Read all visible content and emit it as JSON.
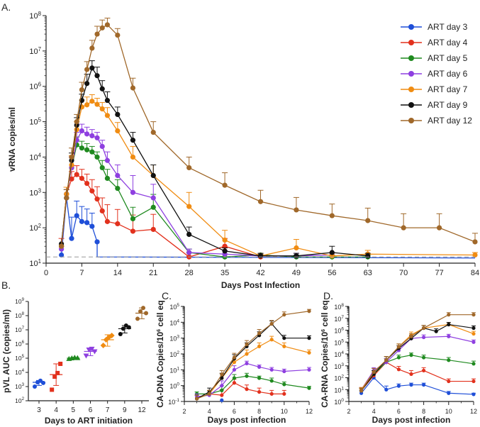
{
  "legend": [
    "ART day 3",
    "ART day 4",
    "ART day 5",
    "ART day 6",
    "ART day 7",
    "ART day 9",
    "ART day 12"
  ],
  "colors": {
    "ART day 3": "#1f4fd8",
    "ART day 4": "#e2311d",
    "ART day 5": "#1f8a1f",
    "ART day 6": "#8e3fe0",
    "ART day 7": "#f08c12",
    "ART day 9": "#111111",
    "ART day 12": "#a0682a"
  },
  "chart_data": [
    {
      "panel": "A.",
      "type": "line",
      "title": "",
      "xlabel": "Days Post Infection",
      "ylabel": "vRNA copies/ml",
      "xlim": [
        0,
        84
      ],
      "ylog": [
        1,
        8
      ],
      "xticks": [
        "0",
        "7",
        "14",
        "21",
        "28",
        "35",
        "42",
        "49",
        "56",
        "63",
        "70",
        "77",
        "84"
      ],
      "yticks": [
        "10",
        "10",
        "10",
        "10",
        "10",
        "10",
        "10",
        "10"
      ],
      "yexp": [
        "1",
        "2",
        "3",
        "4",
        "5",
        "6",
        "7",
        "8"
      ],
      "limit_of_detection": 15,
      "series": [
        {
          "name": "ART day 3",
          "x": [
            3,
            4,
            5,
            6,
            7,
            8,
            9,
            10,
            84
          ],
          "y": [
            17,
            700,
            50,
            220,
            150,
            140,
            110,
            40,
            14
          ],
          "err": [
            0,
            0,
            150,
            350,
            250,
            200,
            150,
            0,
            0
          ],
          "endOnly": true
        },
        {
          "name": "ART day 4",
          "x": [
            3,
            4,
            5,
            6,
            7,
            8,
            9,
            10,
            11,
            12,
            14,
            17,
            21,
            28,
            35,
            42
          ],
          "y": [
            30,
            900,
            2400,
            3200,
            2500,
            1800,
            1100,
            650,
            300,
            150,
            130,
            80,
            90,
            15,
            30,
            15
          ],
          "err": [
            20,
            500,
            1500,
            2500,
            2000,
            1500,
            1200,
            800,
            400,
            300,
            200,
            150,
            150,
            5,
            20,
            3
          ]
        },
        {
          "name": "ART day 5",
          "x": [
            3,
            4,
            5,
            6,
            7,
            8,
            9,
            10,
            11,
            12,
            14,
            17,
            21,
            28,
            35,
            42,
            49,
            56,
            63
          ],
          "y": [
            30,
            900,
            5000,
            22000,
            18000,
            16000,
            14000,
            10000,
            5000,
            2500,
            1300,
            180,
            380,
            20,
            15,
            17,
            15,
            15,
            15
          ],
          "err": [
            0,
            500,
            5000,
            15000,
            10000,
            8000,
            6000,
            4000,
            3000,
            2000,
            1000,
            200,
            500,
            5,
            3,
            2,
            2,
            2,
            2
          ]
        },
        {
          "name": "ART day 6",
          "x": [
            3,
            4,
            5,
            6,
            7,
            8,
            9,
            10,
            11,
            12,
            14,
            17,
            21,
            28,
            35,
            42,
            49,
            56
          ],
          "y": [
            25,
            900,
            5000,
            30000,
            55000,
            45000,
            40000,
            35000,
            20000,
            8000,
            3000,
            1000,
            700,
            20,
            18,
            16,
            16,
            17
          ],
          "err": [
            0,
            500,
            5000,
            20000,
            30000,
            25000,
            20000,
            15000,
            10000,
            6000,
            3000,
            2000,
            1000,
            5,
            5,
            3,
            3,
            3
          ]
        },
        {
          "name": "ART day 7",
          "x": [
            3,
            4,
            5,
            6,
            7,
            8,
            9,
            10,
            11,
            12,
            14,
            17,
            21,
            28,
            35,
            42,
            49,
            56,
            63,
            84
          ],
          "y": [
            30,
            900,
            6000,
            60000,
            260000,
            300000,
            380000,
            310000,
            230000,
            150000,
            55000,
            10000,
            3000,
            400,
            45,
            16,
            27,
            16,
            18,
            17
          ],
          "err": [
            0,
            500,
            5000,
            40000,
            150000,
            200000,
            200000,
            150000,
            120000,
            100000,
            40000,
            10000,
            3000,
            600,
            40,
            3,
            20,
            3,
            5,
            3
          ]
        },
        {
          "name": "ART day 9",
          "x": [
            3,
            4,
            5,
            6,
            7,
            8,
            9,
            10,
            11,
            12,
            14,
            17,
            21,
            28,
            35,
            42,
            49,
            56,
            63
          ],
          "y": [
            35,
            700,
            8000,
            80000,
            400000,
            1200000,
            3300000,
            2000000,
            850000,
            400000,
            160000,
            30000,
            3000,
            65,
            22,
            16,
            16,
            20,
            16
          ],
          "err": [
            0,
            500,
            5000,
            50000,
            200000,
            1000000,
            2000000,
            1500000,
            600000,
            300000,
            100000,
            20000,
            3000,
            40,
            5,
            3,
            3,
            10,
            3
          ]
        },
        {
          "name": "ART day 12",
          "x": [
            3,
            4,
            5,
            6,
            7,
            8,
            9,
            10,
            11,
            12,
            14,
            17,
            21,
            28,
            35,
            42,
            49,
            56,
            63,
            70,
            77,
            84
          ],
          "y": [
            30,
            700,
            10000,
            100000,
            800000,
            3000000,
            12000000,
            30000000,
            45000000,
            55000000,
            28000000,
            900000,
            50000,
            5000,
            1600,
            550,
            320,
            220,
            160,
            100,
            100,
            40
          ],
          "err": [
            0,
            500,
            8000,
            60000,
            500000,
            2000000,
            8000000,
            20000000,
            30000000,
            30000000,
            15000000,
            800000,
            50000,
            5000,
            2000,
            600,
            400,
            250,
            200,
            150,
            150,
            30
          ]
        }
      ]
    },
    {
      "panel": "B.",
      "type": "scatter",
      "xlabel": "Days to ART initiation",
      "ylabel": "pVL AUC (copies/ml)",
      "categories": [
        "3",
        "4",
        "5",
        "6",
        "7",
        "9",
        "12"
      ],
      "ylog": [
        2,
        9
      ],
      "yticks": [
        "10",
        "10",
        "10",
        "10",
        "10",
        "10",
        "10",
        "10"
      ],
      "yexp": [
        "2",
        "3",
        "4",
        "5",
        "6",
        "7",
        "8",
        "9"
      ],
      "groups": [
        {
          "name": "ART day 3",
          "marker": "circle",
          "points": [
            1000,
            2000,
            2600,
            1800
          ],
          "mean": 2000,
          "sd_low": 1200,
          "sd_high": 2700
        },
        {
          "name": "ART day 4",
          "marker": "square",
          "points": [
            600,
            5000,
            9000,
            40000
          ],
          "mean": 7000,
          "sd_low": 1200,
          "sd_high": 40000
        },
        {
          "name": "ART day 5",
          "marker": "triangle",
          "points": [
            90000,
            100000,
            110000,
            105000
          ],
          "mean": 100000,
          "sd_low": 90000,
          "sd_high": 115000
        },
        {
          "name": "ART day 6",
          "marker": "triangle-down",
          "points": [
            150000,
            400000,
            450000,
            300000
          ],
          "mean": 300000,
          "sd_low": 150000,
          "sd_high": 500000
        },
        {
          "name": "ART day 7",
          "marker": "diamond",
          "points": [
            800000,
            2000000,
            3000000,
            4000000
          ],
          "mean": 2000000,
          "sd_low": 700000,
          "sd_high": 4500000
        },
        {
          "name": "ART day 9",
          "marker": "circle",
          "points": [
            5000000,
            12000000,
            20000000,
            15000000
          ],
          "mean": 12000000,
          "sd_low": 6000000,
          "sd_high": 20000000
        },
        {
          "name": "ART day 12",
          "marker": "circle",
          "points": [
            60000000,
            200000000,
            350000000,
            150000000
          ],
          "mean": 150000000,
          "sd_low": 60000000,
          "sd_high": 350000000
        }
      ]
    },
    {
      "panel": "C.",
      "type": "line",
      "xlabel": "Days post infection",
      "ylabel": "CA-DNA Copies/10^6 cell eq",
      "ylabel_parts": [
        "CA-DNA Copies/10",
        "6",
        " cell eq"
      ],
      "xlim": [
        2,
        12
      ],
      "xticks": [
        "2",
        "4",
        "6",
        "8",
        "10",
        "12"
      ],
      "ylog": [
        -1,
        5
      ],
      "yticks": [
        "10",
        "10",
        "10",
        "10",
        "10",
        "10",
        "10"
      ],
      "yexp": [
        "-1",
        "0",
        "1",
        "2",
        "3",
        "4",
        "5"
      ],
      "series": [
        {
          "name": "ART day 3",
          "x": [
            5
          ],
          "y": [
            0.12
          ],
          "err": [
            0
          ]
        },
        {
          "name": "ART day 4",
          "x": [
            3,
            4,
            5,
            6,
            7,
            8,
            9,
            10
          ],
          "y": [
            0.15,
            0.3,
            0.25,
            1.5,
            0.6,
            0.4,
            0.3,
            0.3
          ],
          "err": [
            0.1,
            0.2,
            0.3,
            1,
            0.5,
            0.3,
            0.2,
            0.2
          ]
        },
        {
          "name": "ART day 5",
          "x": [
            3,
            4,
            5,
            6,
            7,
            8,
            9,
            10,
            12
          ],
          "y": [
            0.3,
            0.3,
            0.5,
            3,
            4,
            3,
            2,
            1.2,
            0.7
          ],
          "err": [
            0.1,
            0.2,
            0.5,
            2,
            2,
            1,
            1,
            0.5,
            0.2
          ]
        },
        {
          "name": "ART day 6",
          "x": [
            3,
            4,
            5,
            6,
            7,
            8,
            9,
            10,
            12
          ],
          "y": [
            0.2,
            0.25,
            1,
            10,
            25,
            15,
            10,
            8,
            10
          ],
          "err": [
            0.1,
            0.1,
            1,
            8,
            10,
            5,
            4,
            3,
            4
          ]
        },
        {
          "name": "ART day 7",
          "x": [
            3,
            4,
            5,
            6,
            7,
            8,
            9,
            10,
            12
          ],
          "y": [
            0.15,
            0.3,
            3,
            30,
            100,
            300,
            800,
            300,
            120
          ],
          "err": [
            0.1,
            0.2,
            3,
            20,
            80,
            200,
            500,
            200,
            60
          ]
        },
        {
          "name": "ART day 9",
          "x": [
            3,
            4,
            5,
            6,
            7,
            8,
            9,
            10,
            12
          ],
          "y": [
            0.15,
            0.4,
            3,
            50,
            300,
            1500,
            8000,
            1000,
            1000
          ],
          "err": [
            0.1,
            0.3,
            3,
            40,
            200,
            1000,
            4000,
            500,
            400
          ]
        },
        {
          "name": "ART day 12",
          "x": [
            3,
            4,
            5,
            6,
            7,
            8,
            9,
            10,
            12
          ],
          "y": [
            0.15,
            0.3,
            5,
            60,
            400,
            2000,
            8000,
            30000,
            50000
          ],
          "err": [
            0.1,
            0.2,
            4,
            50,
            300,
            1500,
            5000,
            15000,
            15000
          ]
        }
      ]
    },
    {
      "panel": "D.",
      "type": "line",
      "xlabel": "Days post infection",
      "ylabel": "CA-RNA Copies/10^6 cell eq",
      "ylabel_parts": [
        "CA-RNA Copies/10",
        "6",
        " cell eq"
      ],
      "xlim": [
        2,
        12
      ],
      "xticks": [
        "2",
        "4",
        "6",
        "8",
        "10",
        "12"
      ],
      "ylog": [
        0,
        8
      ],
      "yticks": [
        "10",
        "10",
        "10",
        "10",
        "10",
        "10",
        "10",
        "10",
        "10"
      ],
      "yexp": [
        "0",
        "1",
        "2",
        "3",
        "4",
        "5",
        "6",
        "7",
        "8"
      ],
      "series": [
        {
          "name": "ART day 3",
          "x": [
            3,
            4,
            5,
            6,
            7,
            8,
            10,
            12
          ],
          "y": [
            5,
            100,
            10,
            20,
            25,
            25,
            5,
            4
          ],
          "err": [
            3,
            100,
            10,
            10,
            10,
            10,
            2,
            1
          ]
        },
        {
          "name": "ART day 4",
          "x": [
            3,
            4,
            5,
            6,
            7,
            8,
            10,
            12
          ],
          "y": [
            8,
            150,
            2000,
            500,
            200,
            400,
            50,
            50
          ],
          "err": [
            5,
            150,
            2000,
            400,
            200,
            300,
            30,
            30
          ]
        },
        {
          "name": "ART day 5",
          "x": [
            3,
            4,
            5,
            6,
            7,
            8,
            10,
            12
          ],
          "y": [
            8,
            200,
            2000,
            5000,
            8000,
            5000,
            3000,
            1500
          ],
          "err": [
            5,
            200,
            2000,
            3000,
            4000,
            3000,
            2000,
            1000
          ]
        },
        {
          "name": "ART day 6",
          "x": [
            3,
            4,
            5,
            6,
            7,
            8,
            10,
            12
          ],
          "y": [
            10,
            400,
            2000,
            20000,
            200000,
            250000,
            300000,
            100000
          ],
          "err": [
            5,
            300,
            2000,
            10000,
            100000,
            150000,
            150000,
            50000
          ]
        },
        {
          "name": "ART day 7",
          "x": [
            3,
            4,
            5,
            6,
            7,
            8,
            10,
            12
          ],
          "y": [
            10,
            300,
            3000,
            40000,
            400000,
            1500000,
            3000000,
            500000
          ],
          "err": [
            5,
            300,
            3000,
            30000,
            300000,
            1000000,
            1500000,
            300000
          ]
        },
        {
          "name": "ART day 9",
          "x": [
            3,
            4,
            5,
            6,
            7,
            8,
            9,
            10,
            12
          ],
          "y": [
            8,
            200,
            3000,
            30000,
            200000,
            1500000,
            800000,
            3000000,
            1500000
          ],
          "err": [
            5,
            200,
            3000,
            20000,
            150000,
            1000000,
            500000,
            1500000,
            800000
          ]
        },
        {
          "name": "ART day 12",
          "x": [
            3,
            4,
            5,
            6,
            7,
            8,
            10,
            12
          ],
          "y": [
            8,
            300,
            3000,
            40000,
            300000,
            1500000,
            20000000,
            20000000
          ],
          "err": [
            5,
            300,
            3000,
            30000,
            200000,
            1000000,
            10000000,
            10000000
          ]
        }
      ]
    }
  ]
}
